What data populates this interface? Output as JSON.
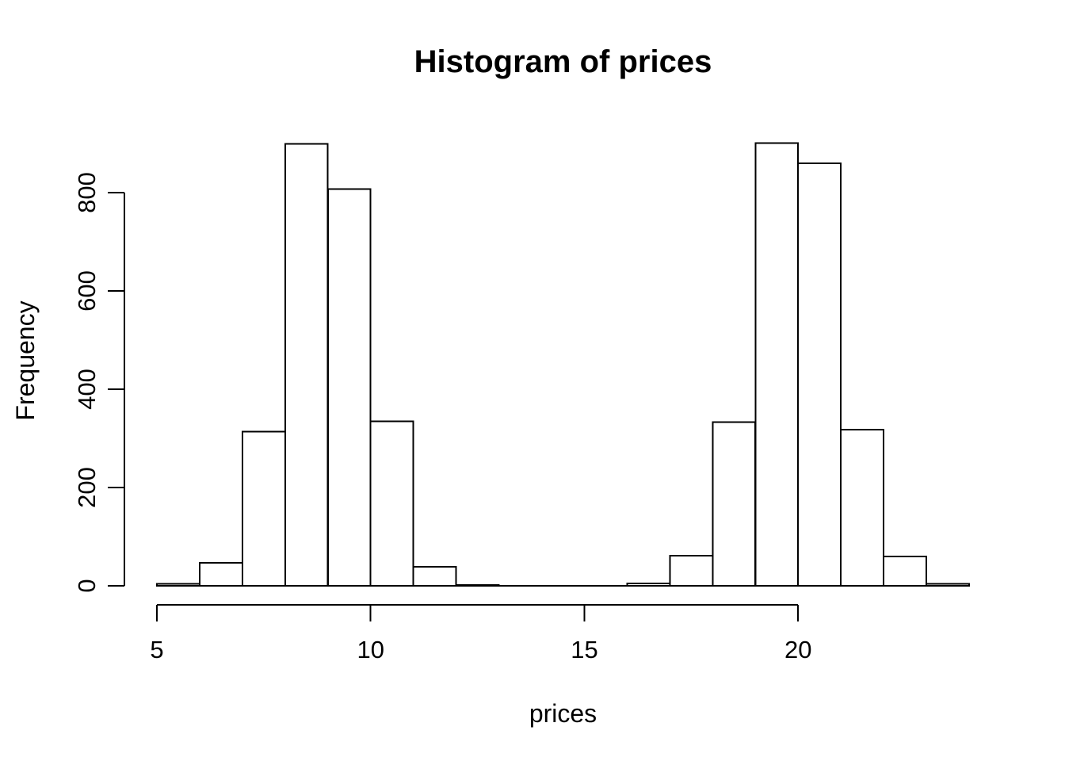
{
  "figure": {
    "title": "Histogram of prices",
    "xlabel": "prices",
    "ylabel": "Frequency"
  },
  "chart_data": {
    "type": "bar",
    "subtype": "histogram",
    "title": "Histogram of prices",
    "xlabel": "prices",
    "ylabel": "Frequency",
    "bin_edges": [
      5,
      6,
      7,
      8,
      9,
      10,
      11,
      12,
      13,
      14,
      15,
      16,
      17,
      18,
      19,
      20,
      21,
      22,
      23,
      24
    ],
    "counts": [
      4,
      47,
      314,
      899,
      807,
      335,
      39,
      2,
      0,
      0,
      0,
      5,
      61,
      333,
      901,
      860,
      318,
      60,
      4
    ],
    "xticks": [
      5,
      10,
      15,
      20
    ],
    "yticks": [
      0,
      200,
      400,
      600,
      800
    ],
    "xlim": [
      5,
      24
    ],
    "ylim": [
      0,
      900
    ],
    "grid": false,
    "legend": "none",
    "bar_fill": "#ffffff",
    "bar_stroke": "#000000",
    "axis_color": "#000000",
    "background": "#ffffff"
  }
}
